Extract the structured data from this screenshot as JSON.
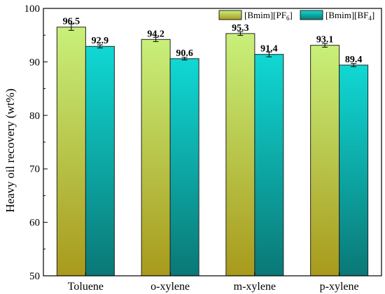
{
  "chart_data": {
    "type": "bar",
    "categories": [
      "Toluene",
      "o-xylene",
      "m-xylene",
      "p-xylene"
    ],
    "series": [
      {
        "name": "[Bmim][PF6]",
        "legend_base": "[Bmim][PF",
        "legend_sub": "6",
        "legend_end": "]",
        "values": [
          96.5,
          94.2,
          95.3,
          93.1
        ],
        "errors": [
          0.6,
          0.4,
          0.35,
          0.35
        ],
        "labels": [
          "96.5",
          "94.2",
          "95.3",
          "93.1"
        ],
        "color_top": "#c8f07a",
        "color_bottom": "#a89a1c"
      },
      {
        "name": "[Bmim][BF4]",
        "legend_base": "[Bmim][BF",
        "legend_sub": "4",
        "legend_end": "]",
        "values": [
          92.9,
          90.6,
          91.4,
          89.4
        ],
        "errors": [
          0.3,
          0.25,
          0.45,
          0.3
        ],
        "labels": [
          "92.9",
          "90.6",
          "91.4",
          "89.4"
        ],
        "color_top": "#10d8d4",
        "color_bottom": "#0a7876"
      }
    ],
    "title": "",
    "xlabel": "",
    "ylabel": "Heavy oil recovery (wt%)",
    "ylim": [
      50,
      100
    ],
    "yticks": [
      50,
      60,
      70,
      80,
      90,
      100
    ],
    "grid": false,
    "legend_position": "top-right"
  }
}
